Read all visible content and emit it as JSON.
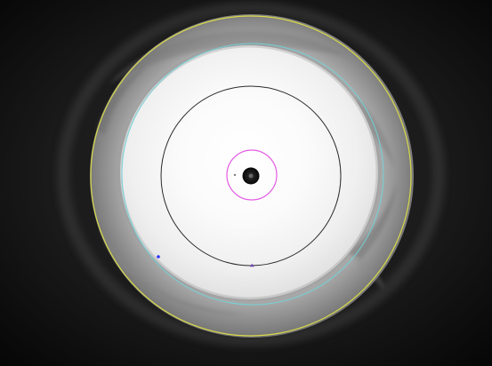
{
  "image": {
    "subject": "microscope-view",
    "palette": {
      "background": "#0d0d0d",
      "outer_ring": "#7c7c7c",
      "inner_field": "#f0f0f0",
      "outer_boundary_circle": "#d7d84a",
      "inner_boundary_circle": "#6fd6dc",
      "reference_circle": "#2a2a2a",
      "center_marker_circle": "#e45ce3",
      "center_spot": "#1b1b1b",
      "blue_marker": "#2c35ff",
      "purple_marker": "#6d45b0"
    }
  }
}
